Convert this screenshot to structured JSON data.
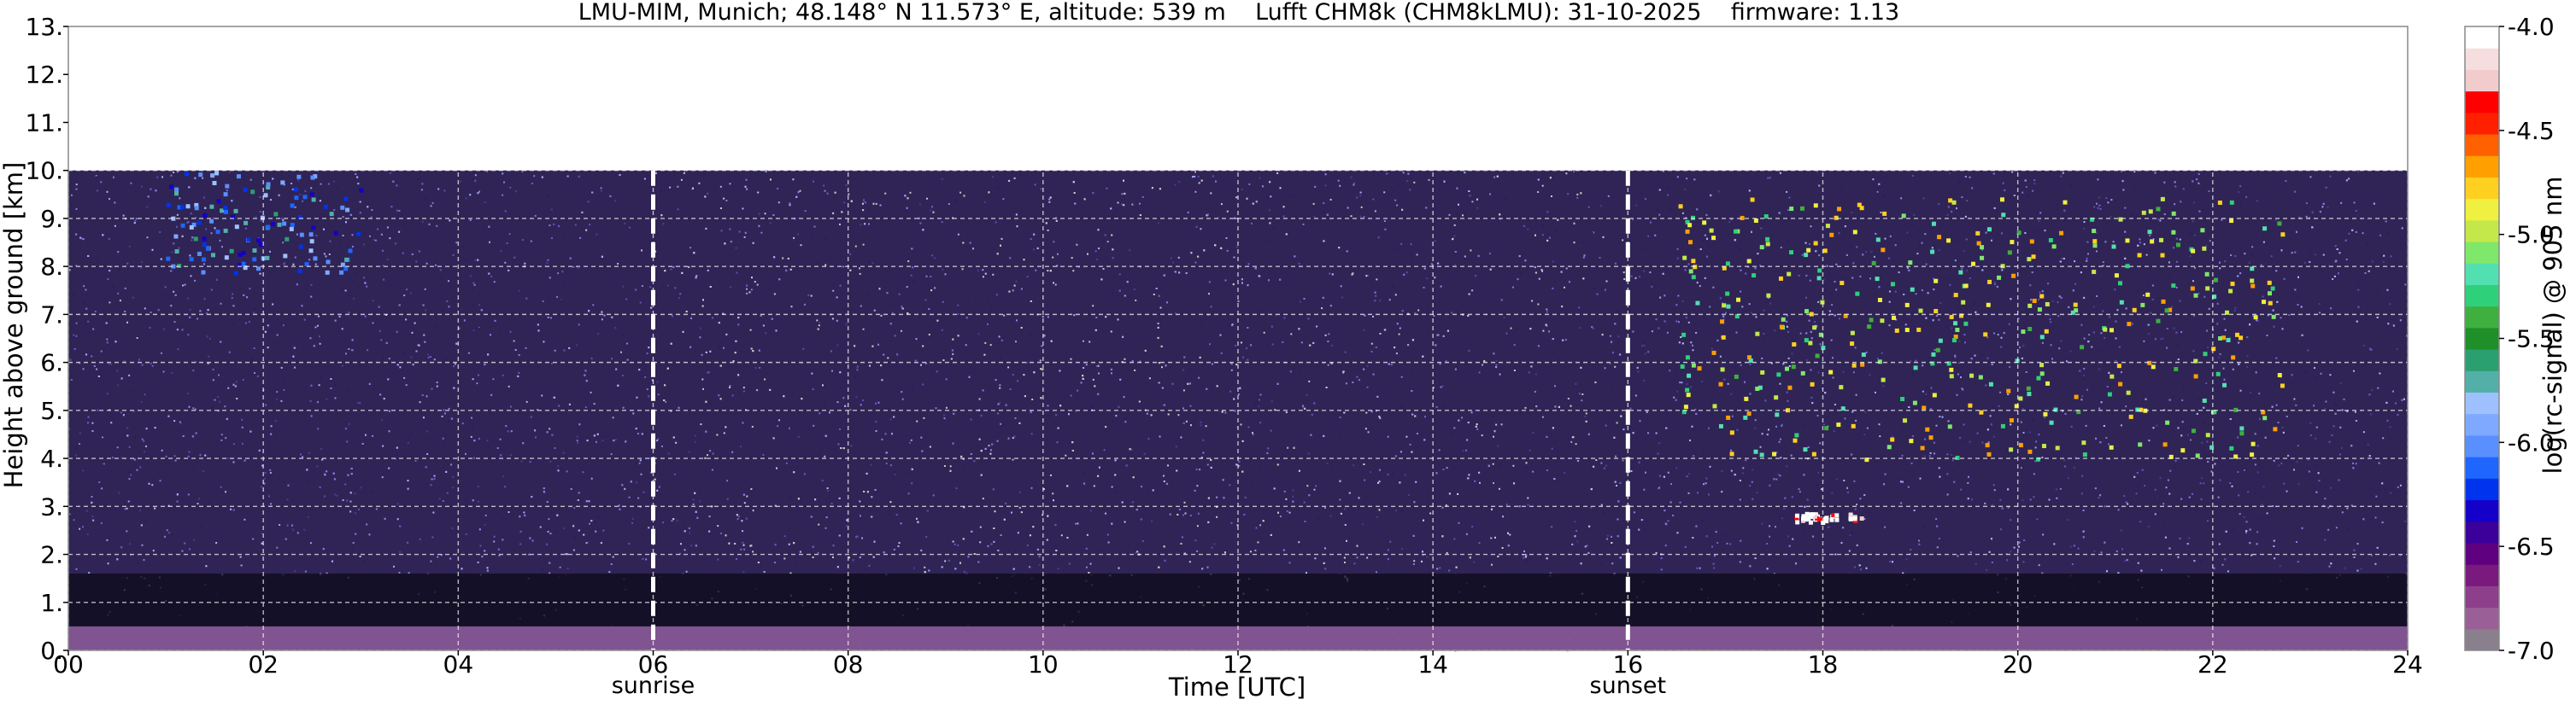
{
  "chart_data": {
    "type": "heatmap",
    "title": "LMU-MIM, Munich; 48.148° N 11.573° E, altitude: 539 m    Lufft CHM8k (CHM8kLMU): 31-10-2025    firmware: 1.13",
    "xlabel": "Time [UTC]",
    "ylabel": "Height above ground [km]",
    "xlim": [
      0,
      24
    ],
    "ylim": [
      0,
      13
    ],
    "x_ticks": [
      "00",
      "02",
      "04",
      "06",
      "08",
      "10",
      "12",
      "14",
      "16",
      "18",
      "20",
      "22",
      "24"
    ],
    "y_ticks": [
      "0.",
      "1.",
      "2.",
      "3.",
      "4.",
      "5.",
      "6.",
      "7.",
      "8.",
      "9.",
      "10.",
      "11.",
      "12.",
      "13."
    ],
    "grid": true,
    "data_top_km": 10.0,
    "markers": [
      {
        "label": "sunrise",
        "time": 6.0
      },
      {
        "label": "sunset",
        "time": 16.0
      }
    ],
    "colorbar": {
      "label": "log(rc-signal) @ 905 nm",
      "range": [
        -7.0,
        -4.0
      ],
      "ticks": [
        "-4.0",
        "-4.5",
        "-5.0",
        "-5.5",
        "-6.0",
        "-6.5",
        "-7.0"
      ],
      "colors": [
        "#8a7f8c",
        "#9b5f98",
        "#8e3f8c",
        "#7a1a7e",
        "#5e007f",
        "#3b009b",
        "#1400c8",
        "#0033ee",
        "#1f66ff",
        "#5a8fff",
        "#7fa9ff",
        "#9fc0ff",
        "#52b0a8",
        "#2aa070",
        "#1f8f2a",
        "#3fb03f",
        "#2fd07a",
        "#52e0b0",
        "#7fe86a",
        "#c4e84a",
        "#f0f040",
        "#ffd020",
        "#ffa000",
        "#ff6000",
        "#ff2000",
        "#ff0000",
        "#f2cccc",
        "#f6dede",
        "#ffffff"
      ]
    },
    "features": [
      {
        "name": "surface aerosol layer",
        "start": 0.0,
        "end": 24.0,
        "height_km": [
          0.0,
          0.5
        ]
      },
      {
        "name": "low cloud",
        "start": 17.7,
        "end": 18.4,
        "height_km": [
          2.7,
          2.9
        ],
        "log_signal": -4.0
      },
      {
        "name": "mid-level cloud band",
        "start": 16.5,
        "end": 22.7,
        "height_km": [
          4.0,
          9.5
        ],
        "log_signal": -5.0
      },
      {
        "name": "upper thin cirrus",
        "start": 1.0,
        "end": 3.0,
        "height_km": [
          7.9,
          10.0
        ],
        "log_signal": -6.0
      }
    ]
  }
}
